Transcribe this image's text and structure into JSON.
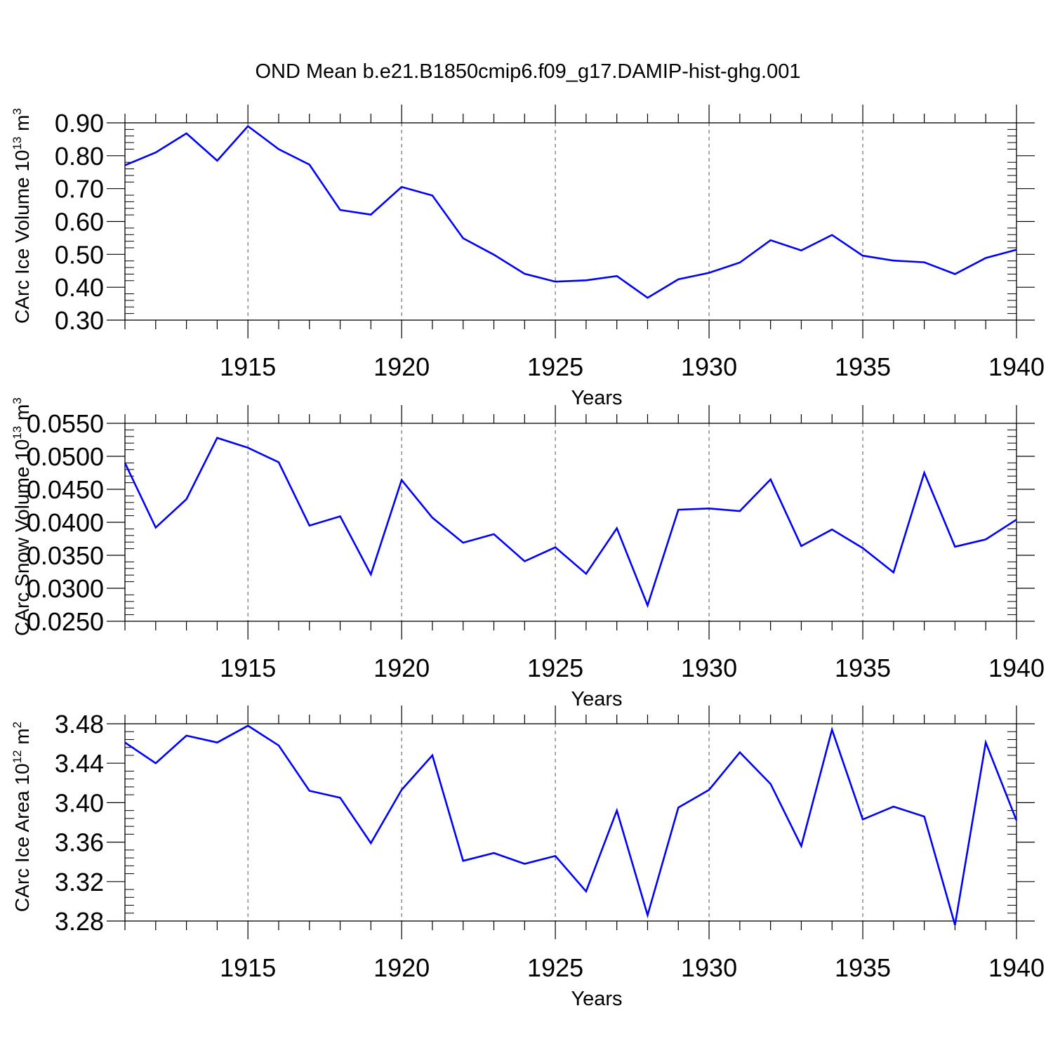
{
  "title": "OND Mean b.e21.B1850cmip6.f09_g17.DAMIP-hist-ghg.001",
  "style": {
    "line_color": "#0000ff",
    "axis_color": "#000000",
    "grid_color": "#555555"
  },
  "chart_data": [
    {
      "type": "line",
      "xlabel": "Years",
      "ylabel": {
        "main": "CArc Ice Volume 10",
        "exp": "13",
        "unit": " m",
        "unit_exp": "3"
      },
      "xlim": [
        1911,
        1940
      ],
      "ylim": [
        0.3,
        0.9
      ],
      "yticks": [
        0.3,
        0.4,
        0.5,
        0.6,
        0.7,
        0.8,
        0.9
      ],
      "ytick_labels": [
        "0.30",
        "0.40",
        "0.50",
        "0.60",
        "0.70",
        "0.80",
        "0.90"
      ],
      "xticks": [
        1915,
        1920,
        1925,
        1930,
        1935,
        1940
      ],
      "xtick_labels": [
        "1915",
        "1920",
        "1925",
        "1930",
        "1935",
        "1940"
      ],
      "grid": "vertical dashed at major x ticks",
      "x": [
        1911,
        1912,
        1913,
        1914,
        1915,
        1916,
        1917,
        1918,
        1919,
        1920,
        1921,
        1922,
        1923,
        1924,
        1925,
        1926,
        1927,
        1928,
        1929,
        1930,
        1931,
        1932,
        1933,
        1934,
        1935,
        1936,
        1937,
        1938,
        1939,
        1940
      ],
      "y": [
        0.771,
        0.81,
        0.868,
        0.785,
        0.89,
        0.82,
        0.773,
        0.635,
        0.621,
        0.705,
        0.679,
        0.549,
        0.499,
        0.441,
        0.417,
        0.421,
        0.434,
        0.368,
        0.424,
        0.444,
        0.475,
        0.543,
        0.512,
        0.559,
        0.496,
        0.481,
        0.476,
        0.44,
        0.489,
        0.514
      ]
    },
    {
      "type": "line",
      "xlabel": "Years",
      "ylabel": {
        "main": "CArc Snow Volume 10",
        "exp": "13",
        "unit": " m",
        "unit_exp": "3"
      },
      "xlim": [
        1911,
        1940
      ],
      "ylim": [
        0.025,
        0.055
      ],
      "yticks": [
        0.025,
        0.03,
        0.035,
        0.04,
        0.045,
        0.05,
        0.055
      ],
      "ytick_labels": [
        "0.0250",
        "0.0300",
        "0.0350",
        "0.0400",
        "0.0450",
        "0.0500",
        "0.0550"
      ],
      "xticks": [
        1915,
        1920,
        1925,
        1930,
        1935,
        1940
      ],
      "xtick_labels": [
        "1915",
        "1920",
        "1925",
        "1930",
        "1935",
        "1940"
      ],
      "grid": "vertical dashed at major x ticks",
      "x": [
        1911,
        1912,
        1913,
        1914,
        1915,
        1916,
        1917,
        1918,
        1919,
        1920,
        1921,
        1922,
        1923,
        1924,
        1925,
        1926,
        1927,
        1928,
        1929,
        1930,
        1931,
        1932,
        1933,
        1934,
        1935,
        1936,
        1937,
        1938,
        1939,
        1940
      ],
      "y": [
        0.049,
        0.0392,
        0.0435,
        0.0528,
        0.0513,
        0.0491,
        0.0395,
        0.0409,
        0.0321,
        0.0464,
        0.0407,
        0.0369,
        0.0382,
        0.0341,
        0.0362,
        0.0322,
        0.0391,
        0.0274,
        0.0419,
        0.0421,
        0.0417,
        0.0465,
        0.0364,
        0.0389,
        0.0361,
        0.0324,
        0.0475,
        0.0363,
        0.0374,
        0.0404
      ]
    },
    {
      "type": "line",
      "xlabel": "Years",
      "ylabel": {
        "main": "CArc Ice Area 10",
        "exp": "12",
        "unit": " m",
        "unit_exp": "2"
      },
      "xlim": [
        1911,
        1940
      ],
      "ylim": [
        3.27,
        3.48
      ],
      "yticks": [
        3.28,
        3.32,
        3.36,
        3.4,
        3.44,
        3.48
      ],
      "ytick_labels": [
        "3.28",
        "3.32",
        "3.36",
        "3.40",
        "3.44",
        "3.48"
      ],
      "xticks": [
        1915,
        1920,
        1925,
        1930,
        1935,
        1940
      ],
      "xtick_labels": [
        "1915",
        "1920",
        "1925",
        "1930",
        "1935",
        "1940"
      ],
      "grid": "vertical dashed at major x ticks",
      "x": [
        1911,
        1912,
        1913,
        1914,
        1915,
        1916,
        1917,
        1918,
        1919,
        1920,
        1921,
        1922,
        1923,
        1924,
        1925,
        1926,
        1927,
        1928,
        1929,
        1930,
        1931,
        1932,
        1933,
        1934,
        1935,
        1936,
        1937,
        1938,
        1939,
        1940
      ],
      "y": [
        3.461,
        3.44,
        3.468,
        3.461,
        3.478,
        3.458,
        3.412,
        3.405,
        3.359,
        3.413,
        3.448,
        3.341,
        3.349,
        3.338,
        3.346,
        3.31,
        3.392,
        3.286,
        3.395,
        3.413,
        3.451,
        3.419,
        3.356,
        3.474,
        3.383,
        3.396,
        3.386,
        3.276,
        3.461,
        3.382
      ]
    }
  ]
}
